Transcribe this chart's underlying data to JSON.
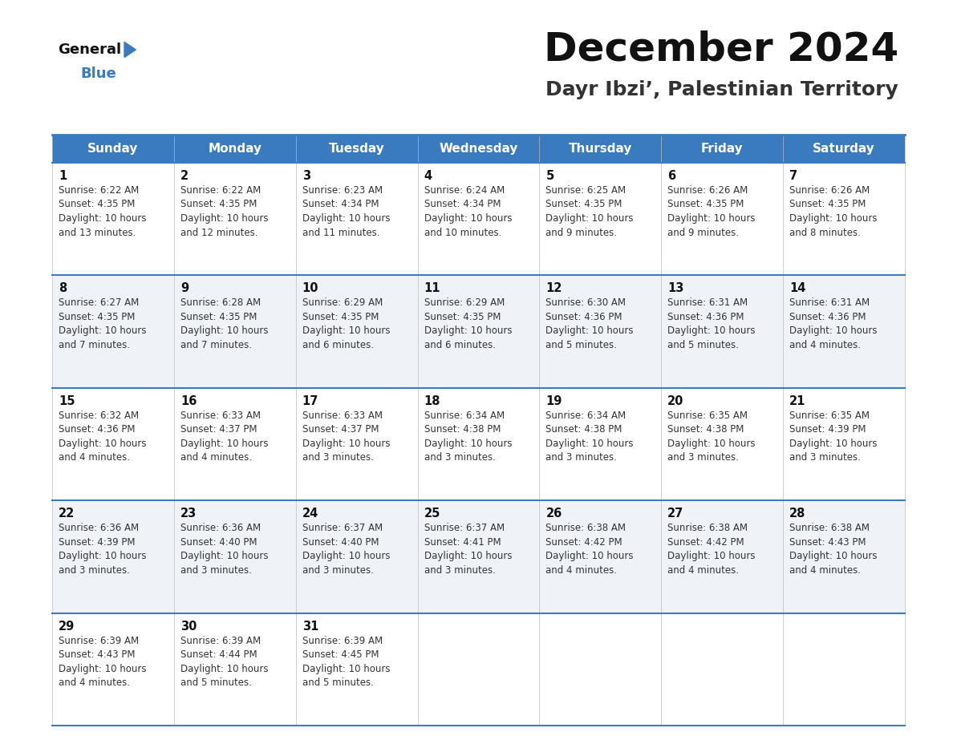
{
  "title": "December 2024",
  "subtitle": "Dayr Ibzi’, Palestinian Territory",
  "header_bg_color": "#3a7bbf",
  "header_text_color": "#ffffff",
  "row_colors": [
    "#ffffff",
    "#eff3f8"
  ],
  "border_color": "#3a7bbf",
  "cell_border_color": "#cccccc",
  "day_headers": [
    "Sunday",
    "Monday",
    "Tuesday",
    "Wednesday",
    "Thursday",
    "Friday",
    "Saturday"
  ],
  "days": [
    {
      "day": 1,
      "col": 0,
      "row": 0,
      "sunrise": "6:22 AM",
      "sunset": "4:35 PM",
      "daylight_hours": 10,
      "daylight_minutes": 13
    },
    {
      "day": 2,
      "col": 1,
      "row": 0,
      "sunrise": "6:22 AM",
      "sunset": "4:35 PM",
      "daylight_hours": 10,
      "daylight_minutes": 12
    },
    {
      "day": 3,
      "col": 2,
      "row": 0,
      "sunrise": "6:23 AM",
      "sunset": "4:34 PM",
      "daylight_hours": 10,
      "daylight_minutes": 11
    },
    {
      "day": 4,
      "col": 3,
      "row": 0,
      "sunrise": "6:24 AM",
      "sunset": "4:34 PM",
      "daylight_hours": 10,
      "daylight_minutes": 10
    },
    {
      "day": 5,
      "col": 4,
      "row": 0,
      "sunrise": "6:25 AM",
      "sunset": "4:35 PM",
      "daylight_hours": 10,
      "daylight_minutes": 9
    },
    {
      "day": 6,
      "col": 5,
      "row": 0,
      "sunrise": "6:26 AM",
      "sunset": "4:35 PM",
      "daylight_hours": 10,
      "daylight_minutes": 9
    },
    {
      "day": 7,
      "col": 6,
      "row": 0,
      "sunrise": "6:26 AM",
      "sunset": "4:35 PM",
      "daylight_hours": 10,
      "daylight_minutes": 8
    },
    {
      "day": 8,
      "col": 0,
      "row": 1,
      "sunrise": "6:27 AM",
      "sunset": "4:35 PM",
      "daylight_hours": 10,
      "daylight_minutes": 7
    },
    {
      "day": 9,
      "col": 1,
      "row": 1,
      "sunrise": "6:28 AM",
      "sunset": "4:35 PM",
      "daylight_hours": 10,
      "daylight_minutes": 7
    },
    {
      "day": 10,
      "col": 2,
      "row": 1,
      "sunrise": "6:29 AM",
      "sunset": "4:35 PM",
      "daylight_hours": 10,
      "daylight_minutes": 6
    },
    {
      "day": 11,
      "col": 3,
      "row": 1,
      "sunrise": "6:29 AM",
      "sunset": "4:35 PM",
      "daylight_hours": 10,
      "daylight_minutes": 6
    },
    {
      "day": 12,
      "col": 4,
      "row": 1,
      "sunrise": "6:30 AM",
      "sunset": "4:36 PM",
      "daylight_hours": 10,
      "daylight_minutes": 5
    },
    {
      "day": 13,
      "col": 5,
      "row": 1,
      "sunrise": "6:31 AM",
      "sunset": "4:36 PM",
      "daylight_hours": 10,
      "daylight_minutes": 5
    },
    {
      "day": 14,
      "col": 6,
      "row": 1,
      "sunrise": "6:31 AM",
      "sunset": "4:36 PM",
      "daylight_hours": 10,
      "daylight_minutes": 4
    },
    {
      "day": 15,
      "col": 0,
      "row": 2,
      "sunrise": "6:32 AM",
      "sunset": "4:36 PM",
      "daylight_hours": 10,
      "daylight_minutes": 4
    },
    {
      "day": 16,
      "col": 1,
      "row": 2,
      "sunrise": "6:33 AM",
      "sunset": "4:37 PM",
      "daylight_hours": 10,
      "daylight_minutes": 4
    },
    {
      "day": 17,
      "col": 2,
      "row": 2,
      "sunrise": "6:33 AM",
      "sunset": "4:37 PM",
      "daylight_hours": 10,
      "daylight_minutes": 3
    },
    {
      "day": 18,
      "col": 3,
      "row": 2,
      "sunrise": "6:34 AM",
      "sunset": "4:38 PM",
      "daylight_hours": 10,
      "daylight_minutes": 3
    },
    {
      "day": 19,
      "col": 4,
      "row": 2,
      "sunrise": "6:34 AM",
      "sunset": "4:38 PM",
      "daylight_hours": 10,
      "daylight_minutes": 3
    },
    {
      "day": 20,
      "col": 5,
      "row": 2,
      "sunrise": "6:35 AM",
      "sunset": "4:38 PM",
      "daylight_hours": 10,
      "daylight_minutes": 3
    },
    {
      "day": 21,
      "col": 6,
      "row": 2,
      "sunrise": "6:35 AM",
      "sunset": "4:39 PM",
      "daylight_hours": 10,
      "daylight_minutes": 3
    },
    {
      "day": 22,
      "col": 0,
      "row": 3,
      "sunrise": "6:36 AM",
      "sunset": "4:39 PM",
      "daylight_hours": 10,
      "daylight_minutes": 3
    },
    {
      "day": 23,
      "col": 1,
      "row": 3,
      "sunrise": "6:36 AM",
      "sunset": "4:40 PM",
      "daylight_hours": 10,
      "daylight_minutes": 3
    },
    {
      "day": 24,
      "col": 2,
      "row": 3,
      "sunrise": "6:37 AM",
      "sunset": "4:40 PM",
      "daylight_hours": 10,
      "daylight_minutes": 3
    },
    {
      "day": 25,
      "col": 3,
      "row": 3,
      "sunrise": "6:37 AM",
      "sunset": "4:41 PM",
      "daylight_hours": 10,
      "daylight_minutes": 3
    },
    {
      "day": 26,
      "col": 4,
      "row": 3,
      "sunrise": "6:38 AM",
      "sunset": "4:42 PM",
      "daylight_hours": 10,
      "daylight_minutes": 4
    },
    {
      "day": 27,
      "col": 5,
      "row": 3,
      "sunrise": "6:38 AM",
      "sunset": "4:42 PM",
      "daylight_hours": 10,
      "daylight_minutes": 4
    },
    {
      "day": 28,
      "col": 6,
      "row": 3,
      "sunrise": "6:38 AM",
      "sunset": "4:43 PM",
      "daylight_hours": 10,
      "daylight_minutes": 4
    },
    {
      "day": 29,
      "col": 0,
      "row": 4,
      "sunrise": "6:39 AM",
      "sunset": "4:43 PM",
      "daylight_hours": 10,
      "daylight_minutes": 4
    },
    {
      "day": 30,
      "col": 1,
      "row": 4,
      "sunrise": "6:39 AM",
      "sunset": "4:44 PM",
      "daylight_hours": 10,
      "daylight_minutes": 5
    },
    {
      "day": 31,
      "col": 2,
      "row": 4,
      "sunrise": "6:39 AM",
      "sunset": "4:45 PM",
      "daylight_hours": 10,
      "daylight_minutes": 5
    }
  ],
  "num_rows": 5,
  "num_cols": 7,
  "fig_width": 11.88,
  "fig_height": 9.18,
  "dpi": 100
}
